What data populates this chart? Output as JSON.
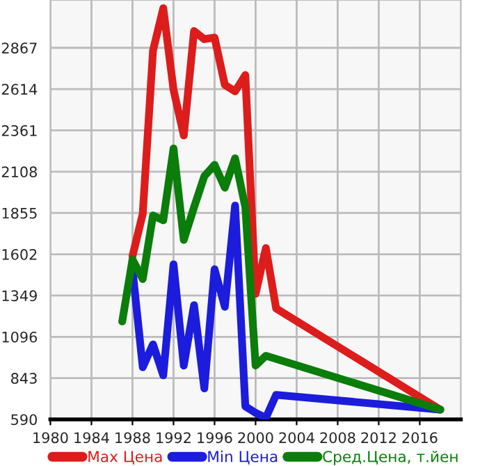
{
  "chart_data": {
    "type": "line",
    "xlim": [
      1980,
      2020
    ],
    "xticks": [
      1980,
      1984,
      1988,
      1992,
      1996,
      2000,
      2004,
      2008,
      2012,
      2016
    ],
    "ylim": [
      590,
      3160
    ],
    "yticks": [
      590,
      843,
      1096,
      1349,
      1602,
      1855,
      2108,
      2361,
      2614,
      2867
    ],
    "grid": true,
    "legend": "bottom",
    "marker": "none",
    "line_style": "solid",
    "series": [
      {
        "name": "Max Цена",
        "color": "#dd1c1c",
        "x": [
          1988,
          1989,
          1990,
          1991,
          1992,
          1993,
          1994,
          1995,
          1996,
          1997,
          1998,
          1999,
          2000,
          2001,
          2002,
          2018
        ],
        "values": [
          1590,
          1850,
          2850,
          3110,
          2610,
          2330,
          2970,
          2920,
          2930,
          2640,
          2600,
          2700,
          1360,
          1640,
          1270,
          650
        ]
      },
      {
        "name": "Min Цена",
        "color": "#1c1cdd",
        "x": [
          1988,
          1989,
          1990,
          1991,
          1992,
          1993,
          1994,
          1995,
          1996,
          1997,
          1998,
          1999,
          2000,
          2001,
          2002,
          2018
        ],
        "values": [
          1510,
          910,
          1050,
          860,
          1540,
          920,
          1290,
          780,
          1510,
          1280,
          1900,
          670,
          630,
          600,
          740,
          650
        ]
      },
      {
        "name": "Сред.Цена, т.йен",
        "color": "#0a7d0a",
        "x": [
          1987,
          1988,
          1989,
          1990,
          1991,
          1992,
          1993,
          1994,
          1995,
          1996,
          1997,
          1998,
          1999,
          2000,
          2001,
          2018
        ],
        "values": [
          1190,
          1570,
          1450,
          1840,
          1810,
          2250,
          1690,
          1890,
          2080,
          2150,
          2010,
          2190,
          1890,
          920,
          980,
          650
        ]
      }
    ]
  }
}
